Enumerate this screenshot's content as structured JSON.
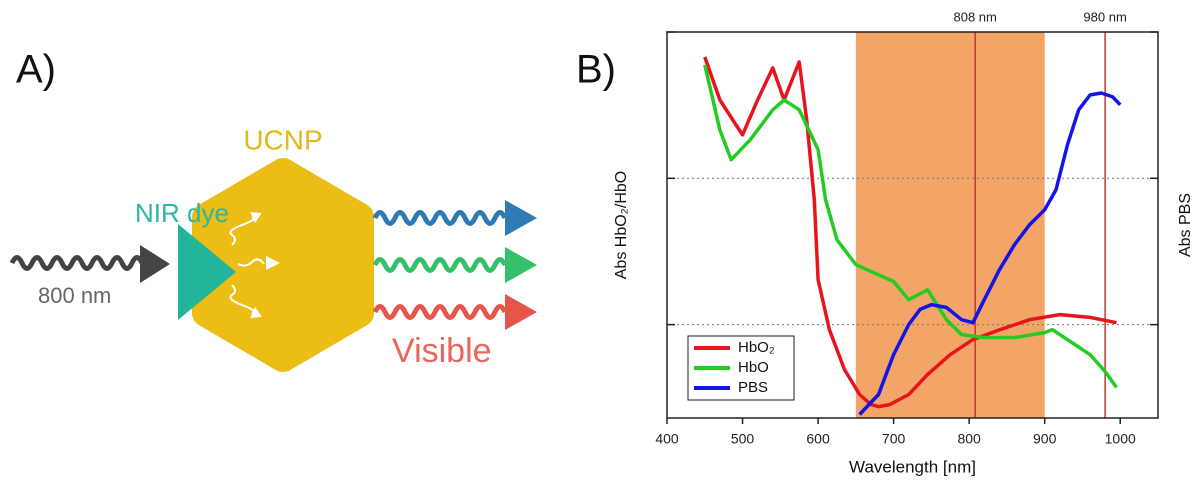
{
  "panel_labels": [
    "A)",
    "B)"
  ],
  "diagram": {
    "ucnp": "UCNP",
    "dye": "NIR dye",
    "input": "800 nm",
    "output": "Visible"
  },
  "chart_data": {
    "type": "line",
    "xlabel": "Wavelength [nm]",
    "ylabel": "Abs HbO₂/HbO",
    "y2label": "Abs PBS",
    "xlim": [
      400,
      1050
    ],
    "xticks": [
      400,
      500,
      600,
      700,
      800,
      900,
      1000
    ],
    "ylim": [
      0.0023,
      1
    ],
    "yticks": [
      0.01,
      0.1,
      1
    ],
    "y2lim": [
      0.0023,
      1
    ],
    "y2ticks": [
      0.01,
      0.1,
      1
    ],
    "log_y": true,
    "grid": true,
    "legend": "lower left",
    "span": {
      "range": [
        650,
        900
      ],
      "color": "#f2a566"
    },
    "vlines": [
      {
        "x": 808,
        "label": "808 nm",
        "color": "#c0392b"
      },
      {
        "x": 980,
        "label": "980 nm",
        "color": "#c0392b"
      }
    ],
    "series": [
      {
        "name": "HbO₂",
        "color": "#e8141c",
        "x": [
          450,
          470,
          500,
          520,
          540,
          555,
          575,
          585,
          595,
          600,
          615,
          635,
          655,
          670,
          680,
          695,
          720,
          745,
          775,
          805,
          840,
          880,
          920,
          960,
          995
        ],
        "values": [
          0.675,
          0.343,
          0.198,
          0.343,
          0.568,
          0.343,
          0.624,
          0.251,
          0.0713,
          0.0203,
          0.00925,
          0.00493,
          0.00333,
          0.00284,
          0.00275,
          0.00284,
          0.00333,
          0.00456,
          0.00624,
          0.0079,
          0.0092,
          0.0108,
          0.0117,
          0.0112,
          0.0103
        ]
      },
      {
        "name": "HbO",
        "color": "#22cc22",
        "x": [
          450,
          470,
          485,
          510,
          540,
          555,
          575,
          600,
          610,
          625,
          650,
          680,
          700,
          720,
          745,
          770,
          790,
          820,
          860,
          900,
          910,
          930,
          960,
          980,
          995
        ],
        "values": [
          0.596,
          0.214,
          0.134,
          0.183,
          0.294,
          0.343,
          0.294,
          0.157,
          0.0713,
          0.038,
          0.0257,
          0.0219,
          0.0197,
          0.0148,
          0.0173,
          0.0108,
          0.00855,
          0.00815,
          0.00815,
          0.00882,
          0.00925,
          0.0079,
          0.00624,
          0.00478,
          0.00372
        ]
      },
      {
        "name": "PBS",
        "color": "#1414e6",
        "axis": "y2",
        "x": [
          655,
          680,
          700,
          720,
          735,
          750,
          770,
          790,
          805,
          820,
          840,
          860,
          880,
          900,
          915,
          930,
          945,
          960,
          975,
          990,
          1000
        ],
        "values": [
          0.00243,
          0.00333,
          0.00624,
          0.01,
          0.0127,
          0.0137,
          0.0131,
          0.0108,
          0.0103,
          0.0148,
          0.0237,
          0.0352,
          0.0482,
          0.061,
          0.0835,
          0.169,
          0.294,
          0.371,
          0.383,
          0.36,
          0.318
        ]
      }
    ]
  }
}
